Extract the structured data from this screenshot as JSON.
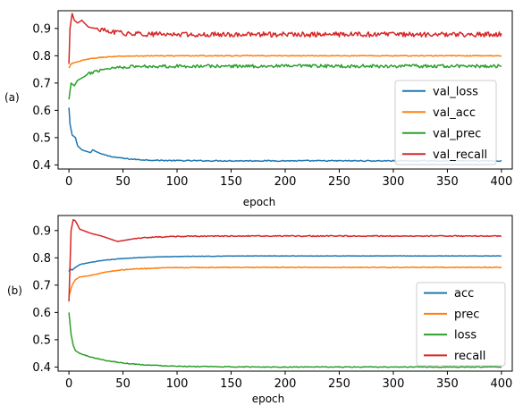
{
  "chart_data": [
    {
      "panel_label": "(a)",
      "type": "line",
      "xlabel": "epoch",
      "ylabel": "",
      "xlim": [
        -10,
        410
      ],
      "ylim": [
        0.385,
        0.965
      ],
      "xticks": [
        0,
        50,
        100,
        150,
        200,
        250,
        300,
        350,
        400
      ],
      "yticks": [
        0.4,
        0.5,
        0.6,
        0.7,
        0.8,
        0.9
      ],
      "ytick_labels": [
        "0.4",
        "0.5",
        "0.6",
        "0.7",
        "0.8",
        "0.9"
      ],
      "grid": false,
      "legend_position": "lower-right",
      "series": [
        {
          "name": "val_loss",
          "color": "#1f77b4",
          "start": 0.61,
          "end": 0.415,
          "rate": 0.05,
          "noise": 0.002,
          "early": [
            [
              0,
              0.61
            ],
            [
              1,
              0.55
            ],
            [
              3,
              0.51
            ],
            [
              6,
              0.5
            ],
            [
              8,
              0.47
            ],
            [
              12,
              0.455
            ],
            [
              20,
              0.445
            ],
            [
              22,
              0.455
            ],
            [
              30,
              0.44
            ]
          ]
        },
        {
          "name": "val_acc",
          "color": "#ff7f0e",
          "start": 0.75,
          "end": 0.8,
          "rate": 0.06,
          "noise": 0.0015,
          "early": [
            [
              0,
              0.755
            ],
            [
              2,
              0.77
            ],
            [
              5,
              0.775
            ],
            [
              10,
              0.78
            ]
          ]
        },
        {
          "name": "val_prec",
          "color": "#2ca02c",
          "start": 0.64,
          "end": 0.762,
          "rate": 0.07,
          "noise": 0.006,
          "early": [
            [
              0,
              0.64
            ],
            [
              2,
              0.7
            ],
            [
              5,
              0.69
            ],
            [
              8,
              0.71
            ],
            [
              15,
              0.725
            ]
          ]
        },
        {
          "name": "val_recall",
          "color": "#d62728",
          "start": 0.77,
          "end": 0.878,
          "rate": 0.06,
          "noise": 0.009,
          "early": [
            [
              0,
              0.77
            ],
            [
              1,
              0.9
            ],
            [
              3,
              0.955
            ],
            [
              5,
              0.93
            ],
            [
              8,
              0.92
            ],
            [
              12,
              0.93
            ],
            [
              18,
              0.905
            ],
            [
              25,
              0.9
            ]
          ]
        }
      ]
    },
    {
      "panel_label": "(b)",
      "type": "line",
      "xlabel": "epoch",
      "ylabel": "",
      "xlim": [
        -10,
        410
      ],
      "ylim": [
        0.385,
        0.955
      ],
      "xticks": [
        0,
        50,
        100,
        150,
        200,
        250,
        300,
        350,
        400
      ],
      "yticks": [
        0.4,
        0.5,
        0.6,
        0.7,
        0.8,
        0.9
      ],
      "ytick_labels": [
        "0.4",
        "0.5",
        "0.6",
        "0.7",
        "0.8",
        "0.9"
      ],
      "grid": false,
      "legend_position": "lower-right",
      "series": [
        {
          "name": "acc",
          "color": "#1f77b4",
          "start": 0.75,
          "end": 0.807,
          "rate": 0.03,
          "noise": 0.0008,
          "early": [
            [
              0,
              0.75
            ],
            [
              1,
              0.76
            ],
            [
              3,
              0.755
            ],
            [
              6,
              0.765
            ],
            [
              10,
              0.775
            ]
          ]
        },
        {
          "name": "prec",
          "color": "#ff7f0e",
          "start": 0.66,
          "end": 0.765,
          "rate": 0.04,
          "noise": 0.0015,
          "early": [
            [
              0,
              0.66
            ],
            [
              3,
              0.7
            ],
            [
              6,
              0.72
            ],
            [
              10,
              0.73
            ],
            [
              20,
              0.735
            ]
          ]
        },
        {
          "name": "loss",
          "color": "#2ca02c",
          "start": 0.6,
          "end": 0.4,
          "rate": 0.03,
          "noise": 0.0015,
          "early": [
            [
              0,
              0.6
            ],
            [
              2,
              0.52
            ],
            [
              4,
              0.48
            ],
            [
              6,
              0.46
            ],
            [
              10,
              0.45
            ]
          ]
        },
        {
          "name": "recall",
          "color": "#d62728",
          "start": 0.64,
          "end": 0.88,
          "rate": 0.04,
          "noise": 0.002,
          "early": [
            [
              0,
              0.64
            ],
            [
              2,
              0.9
            ],
            [
              4,
              0.94
            ],
            [
              6,
              0.935
            ],
            [
              10,
              0.905
            ],
            [
              20,
              0.89
            ],
            [
              30,
              0.88
            ],
            [
              45,
              0.86
            ],
            [
              60,
              0.87
            ]
          ]
        }
      ]
    }
  ]
}
